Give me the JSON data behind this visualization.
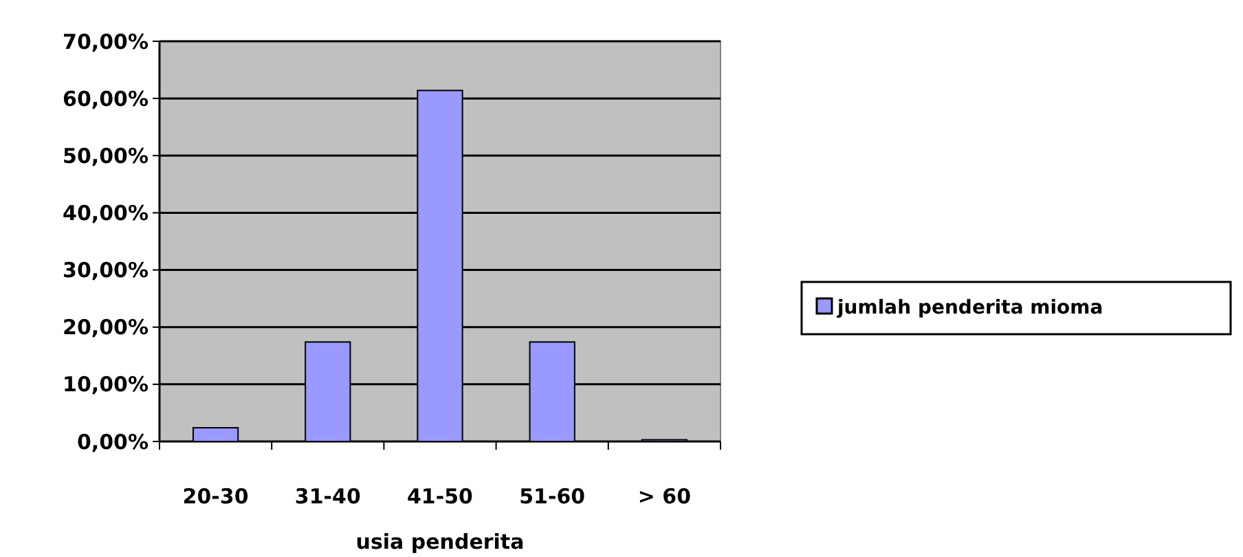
{
  "chart_data": {
    "type": "bar",
    "xlabel": "usia penderita",
    "categories": [
      "20-30",
      "31-40",
      "41-50",
      "51-60",
      "> 60"
    ],
    "series": [
      {
        "name": "jumlah penderita mioma",
        "color": "#9999ff",
        "values": [
          2.4,
          17.4,
          61.4,
          17.4,
          0.3
        ]
      }
    ],
    "ylim": [
      0,
      70
    ],
    "yticks": [
      {
        "value": 0,
        "label": "0,00%"
      },
      {
        "value": 10,
        "label": "10,00%"
      },
      {
        "value": 20,
        "label": "20,00%"
      },
      {
        "value": 30,
        "label": "30,00%"
      },
      {
        "value": 40,
        "label": "40,00%"
      },
      {
        "value": 50,
        "label": "50,00%"
      },
      {
        "value": 60,
        "label": "60,00%"
      },
      {
        "value": 70,
        "label": "70,00%"
      }
    ],
    "grid": "y",
    "legend": "right"
  }
}
